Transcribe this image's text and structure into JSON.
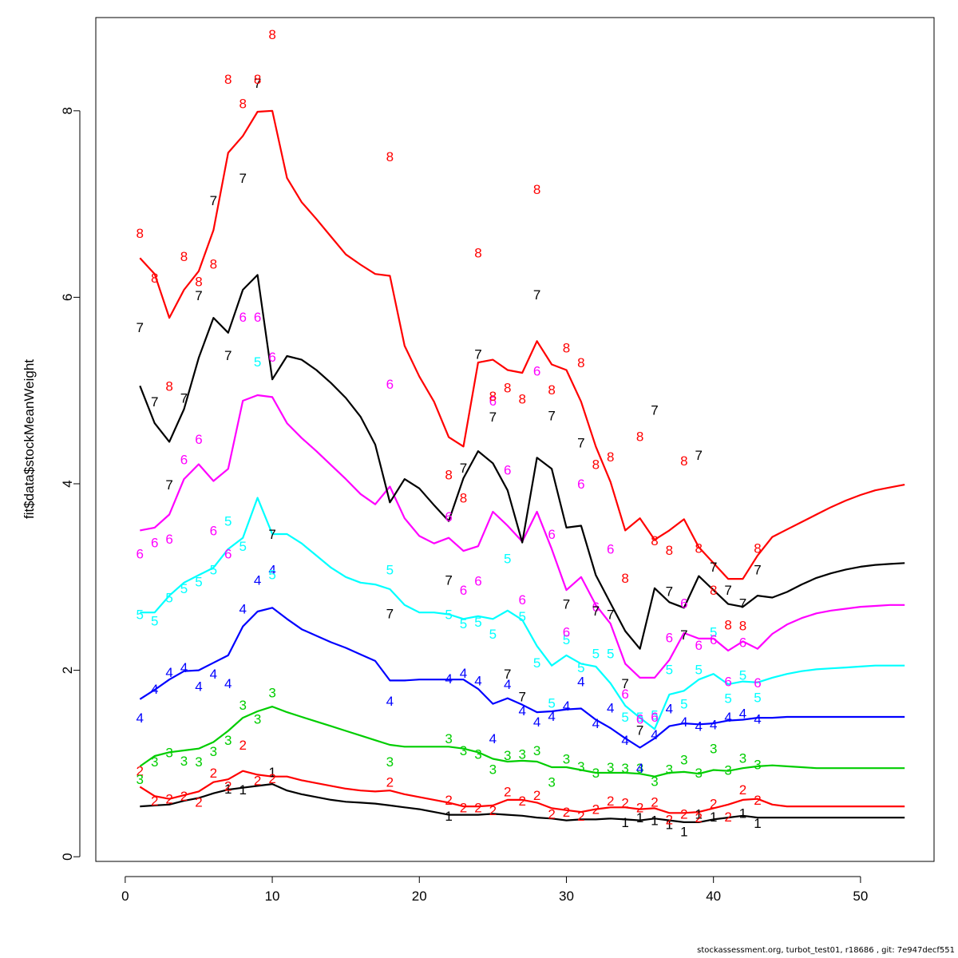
{
  "chart_data": {
    "type": "line",
    "ylabel": "fit$data$stockMeanWeight",
    "xlim": [
      -2,
      55
    ],
    "ylim": [
      -0.05,
      9.0
    ],
    "x_ticks": [
      0,
      10,
      20,
      30,
      40,
      50
    ],
    "y_ticks": [
      0,
      2,
      4,
      6,
      8
    ],
    "fit_x": [
      1,
      2,
      3,
      4,
      5,
      6,
      7,
      8,
      9,
      10,
      11,
      12,
      13,
      14,
      15,
      16,
      17,
      18,
      19,
      20,
      21,
      22,
      23,
      24,
      25,
      26,
      27,
      28,
      29,
      30,
      31,
      32,
      33,
      34,
      35,
      36,
      37,
      38,
      39,
      40,
      41,
      42,
      43,
      44,
      45,
      46,
      47,
      48,
      49,
      50,
      51,
      52,
      53
    ],
    "series": [
      {
        "name": "1",
        "color": "#000000",
        "fit": [
          0.54,
          0.55,
          0.56,
          0.6,
          0.63,
          0.68,
          0.72,
          0.74,
          0.76,
          0.78,
          0.71,
          0.67,
          0.64,
          0.61,
          0.59,
          0.58,
          0.57,
          0.55,
          0.53,
          0.51,
          0.48,
          0.45,
          0.45,
          0.45,
          0.46,
          0.45,
          0.44,
          0.42,
          0.41,
          0.39,
          0.4,
          0.4,
          0.41,
          0.4,
          0.39,
          0.41,
          0.39,
          0.37,
          0.37,
          0.4,
          0.42,
          0.44,
          0.42,
          0.42,
          0.42,
          0.42,
          0.42,
          0.42,
          0.42,
          0.42,
          0.42,
          0.42,
          0.42
        ],
        "obs_x": [
          7,
          8,
          10,
          22,
          34,
          35,
          36,
          37,
          38,
          39,
          40,
          42,
          43
        ],
        "obs_y": [
          0.73,
          0.72,
          0.91,
          0.44,
          0.37,
          0.42,
          0.39,
          0.35,
          0.27,
          0.46,
          0.43,
          0.47,
          0.36
        ]
      },
      {
        "name": "2",
        "color": "#ff0000",
        "fit": [
          0.75,
          0.65,
          0.62,
          0.66,
          0.7,
          0.8,
          0.83,
          0.92,
          0.88,
          0.86,
          0.86,
          0.82,
          0.79,
          0.76,
          0.73,
          0.71,
          0.7,
          0.71,
          0.67,
          0.64,
          0.61,
          0.58,
          0.54,
          0.54,
          0.55,
          0.61,
          0.61,
          0.58,
          0.52,
          0.5,
          0.48,
          0.51,
          0.53,
          0.53,
          0.51,
          0.52,
          0.47,
          0.47,
          0.48,
          0.52,
          0.56,
          0.61,
          0.62,
          0.56,
          0.54,
          0.54,
          0.54,
          0.54,
          0.54,
          0.54,
          0.54,
          0.54,
          0.54
        ],
        "obs_x": [
          1,
          2,
          3,
          4,
          5,
          6,
          7,
          8,
          9,
          10,
          18,
          22,
          23,
          24,
          25,
          26,
          27,
          28,
          29,
          30,
          31,
          32,
          33,
          34,
          35,
          36,
          37,
          38,
          39,
          40,
          41,
          42,
          43
        ],
        "obs_y": [
          0.92,
          0.6,
          0.62,
          0.65,
          0.59,
          0.9,
          0.76,
          1.2,
          0.82,
          0.84,
          0.8,
          0.61,
          0.53,
          0.53,
          0.5,
          0.7,
          0.6,
          0.66,
          0.46,
          0.48,
          0.44,
          0.51,
          0.6,
          0.58,
          0.53,
          0.59,
          0.4,
          0.46,
          0.42,
          0.57,
          0.43,
          0.72,
          0.61
        ]
      },
      {
        "name": "3",
        "color": "#00cd00",
        "fit": [
          0.97,
          1.08,
          1.12,
          1.14,
          1.16,
          1.23,
          1.35,
          1.49,
          1.56,
          1.61,
          1.55,
          1.5,
          1.45,
          1.4,
          1.35,
          1.3,
          1.25,
          1.2,
          1.18,
          1.18,
          1.18,
          1.18,
          1.16,
          1.12,
          1.05,
          1.02,
          1.03,
          1.02,
          0.96,
          0.96,
          0.93,
          0.9,
          0.9,
          0.9,
          0.89,
          0.86,
          0.9,
          0.91,
          0.89,
          0.93,
          0.92,
          0.95,
          0.97,
          0.98,
          0.97,
          0.96,
          0.95,
          0.95,
          0.95,
          0.95,
          0.95,
          0.95,
          0.95
        ],
        "obs_x": [
          1,
          2,
          3,
          4,
          5,
          6,
          7,
          8,
          9,
          10,
          18,
          22,
          23,
          24,
          25,
          26,
          27,
          28,
          29,
          30,
          31,
          32,
          33,
          34,
          35,
          36,
          37,
          38,
          39,
          40,
          41,
          42,
          43
        ],
        "obs_y": [
          0.83,
          1.02,
          1.12,
          1.03,
          1.02,
          1.13,
          1.25,
          1.63,
          1.48,
          1.76,
          1.02,
          1.27,
          1.14,
          1.1,
          0.94,
          1.09,
          1.1,
          1.14,
          0.8,
          1.05,
          0.97,
          0.9,
          0.96,
          0.95,
          0.95,
          0.81,
          0.94,
          1.04,
          0.9,
          1.16,
          0.93,
          1.06,
          0.99
        ]
      },
      {
        "name": "4",
        "color": "#0000ff",
        "fit": [
          1.69,
          1.79,
          1.9,
          1.99,
          2.0,
          2.08,
          2.16,
          2.47,
          2.63,
          2.67,
          2.55,
          2.44,
          2.37,
          2.3,
          2.24,
          2.17,
          2.1,
          1.89,
          1.89,
          1.9,
          1.9,
          1.9,
          1.9,
          1.8,
          1.64,
          1.7,
          1.63,
          1.55,
          1.56,
          1.58,
          1.59,
          1.47,
          1.38,
          1.27,
          1.17,
          1.27,
          1.4,
          1.43,
          1.42,
          1.43,
          1.46,
          1.47,
          1.49,
          1.49,
          1.5,
          1.5,
          1.5,
          1.5,
          1.5,
          1.5,
          1.5,
          1.5,
          1.5
        ],
        "obs_x": [
          1,
          2,
          3,
          4,
          5,
          6,
          7,
          8,
          9,
          10,
          18,
          22,
          23,
          24,
          25,
          26,
          27,
          28,
          29,
          30,
          31,
          32,
          33,
          34,
          35,
          36,
          37,
          38,
          39,
          40,
          41,
          42,
          43
        ],
        "obs_y": [
          1.49,
          1.8,
          1.98,
          2.03,
          1.83,
          1.96,
          1.86,
          2.66,
          2.97,
          3.08,
          1.67,
          1.91,
          1.97,
          1.89,
          1.27,
          1.85,
          1.57,
          1.45,
          1.51,
          1.62,
          1.88,
          1.43,
          1.6,
          1.25,
          0.95,
          1.31,
          1.59,
          1.45,
          1.4,
          1.42,
          1.5,
          1.54,
          1.48
        ]
      },
      {
        "name": "5",
        "color": "#00ffff",
        "fit": [
          2.62,
          2.62,
          2.8,
          2.94,
          3.02,
          3.1,
          3.3,
          3.42,
          3.85,
          3.46,
          3.46,
          3.36,
          3.23,
          3.1,
          3.0,
          2.94,
          2.92,
          2.87,
          2.7,
          2.62,
          2.62,
          2.6,
          2.55,
          2.58,
          2.55,
          2.64,
          2.54,
          2.26,
          2.05,
          2.16,
          2.07,
          2.04,
          1.86,
          1.62,
          1.49,
          1.37,
          1.74,
          1.78,
          1.9,
          1.96,
          1.85,
          1.88,
          1.87,
          1.92,
          1.96,
          1.99,
          2.01,
          2.02,
          2.03,
          2.04,
          2.05,
          2.05,
          2.05
        ],
        "obs_x": [
          1,
          2,
          3,
          4,
          5,
          6,
          7,
          8,
          9,
          10,
          18,
          22,
          23,
          24,
          25,
          26,
          27,
          28,
          29,
          30,
          31,
          32,
          33,
          34,
          35,
          36,
          37,
          38,
          39,
          40,
          41,
          42,
          43
        ],
        "obs_y": [
          2.6,
          2.53,
          2.78,
          2.88,
          2.95,
          3.08,
          3.6,
          3.33,
          5.31,
          3.03,
          3.08,
          2.6,
          2.5,
          2.52,
          2.39,
          3.2,
          2.58,
          2.08,
          1.65,
          2.33,
          2.03,
          2.18,
          2.18,
          1.5,
          1.5,
          1.52,
          2.01,
          1.64,
          2.01,
          2.41,
          1.7,
          1.95,
          1.71
        ]
      },
      {
        "name": "6",
        "color": "#ff00ff",
        "fit": [
          3.5,
          3.53,
          3.67,
          4.05,
          4.21,
          4.03,
          4.16,
          4.89,
          4.95,
          4.93,
          4.65,
          4.49,
          4.35,
          4.2,
          4.05,
          3.89,
          3.78,
          3.97,
          3.63,
          3.44,
          3.36,
          3.42,
          3.28,
          3.33,
          3.7,
          3.55,
          3.38,
          3.7,
          3.3,
          2.86,
          3.0,
          2.7,
          2.5,
          2.07,
          1.92,
          1.92,
          2.11,
          2.4,
          2.34,
          2.34,
          2.21,
          2.31,
          2.23,
          2.39,
          2.49,
          2.56,
          2.61,
          2.64,
          2.66,
          2.68,
          2.69,
          2.7,
          2.7
        ],
        "obs_x": [
          1,
          2,
          3,
          4,
          5,
          6,
          7,
          8,
          9,
          10,
          18,
          22,
          23,
          24,
          25,
          26,
          27,
          28,
          29,
          30,
          31,
          32,
          33,
          34,
          35,
          36,
          37,
          38,
          39,
          40,
          41,
          42,
          43
        ],
        "obs_y": [
          3.25,
          3.37,
          3.41,
          4.26,
          4.48,
          3.5,
          3.25,
          5.79,
          5.79,
          5.36,
          5.07,
          3.65,
          2.86,
          2.96,
          4.89,
          4.15,
          2.76,
          5.21,
          3.46,
          2.41,
          4.0,
          2.68,
          3.3,
          1.75,
          1.48,
          1.5,
          2.35,
          2.72,
          2.27,
          2.33,
          1.88,
          2.3,
          1.87
        ]
      },
      {
        "name": "7",
        "color": "#000000",
        "fit": [
          5.05,
          4.65,
          4.45,
          4.8,
          5.35,
          5.78,
          5.62,
          6.08,
          6.24,
          5.12,
          5.37,
          5.33,
          5.22,
          5.08,
          4.92,
          4.72,
          4.42,
          3.8,
          4.05,
          3.95,
          3.77,
          3.6,
          4.06,
          4.35,
          4.22,
          3.93,
          3.37,
          4.28,
          4.16,
          3.53,
          3.55,
          3.02,
          2.72,
          2.42,
          2.23,
          2.88,
          2.73,
          2.67,
          3.01,
          2.86,
          2.71,
          2.68,
          2.8,
          2.78,
          2.84,
          2.92,
          2.99,
          3.04,
          3.08,
          3.11,
          3.13,
          3.14,
          3.15
        ],
        "obs_x": [
          1,
          2,
          3,
          4,
          5,
          6,
          7,
          8,
          9,
          10,
          18,
          22,
          23,
          24,
          25,
          26,
          27,
          28,
          29,
          30,
          31,
          32,
          33,
          34,
          35,
          36,
          37,
          38,
          39,
          40,
          41,
          42,
          43
        ],
        "obs_y": [
          5.68,
          4.88,
          3.99,
          4.92,
          6.02,
          7.04,
          5.38,
          7.28,
          8.3,
          3.46,
          2.61,
          2.97,
          4.17,
          5.39,
          4.72,
          1.96,
          1.72,
          6.03,
          4.73,
          2.71,
          4.44,
          2.64,
          2.6,
          1.86,
          1.36,
          4.79,
          2.85,
          2.38,
          4.31,
          3.11,
          2.86,
          2.72,
          3.08
        ]
      },
      {
        "name": "8",
        "color": "#ff0000",
        "fit": [
          6.42,
          6.25,
          5.78,
          6.08,
          6.28,
          6.72,
          7.55,
          7.73,
          7.99,
          8.0,
          7.28,
          7.02,
          6.84,
          6.65,
          6.46,
          6.35,
          6.25,
          6.23,
          5.48,
          5.15,
          4.88,
          4.5,
          4.4,
          5.3,
          5.33,
          5.22,
          5.19,
          5.53,
          5.28,
          5.22,
          4.88,
          4.4,
          4.02,
          3.5,
          3.63,
          3.4,
          3.5,
          3.62,
          3.32,
          3.15,
          2.98,
          2.98,
          3.23,
          3.43,
          3.51,
          3.59,
          3.67,
          3.75,
          3.82,
          3.88,
          3.93,
          3.96,
          3.99
        ],
        "obs_x": [
          1,
          2,
          3,
          4,
          5,
          6,
          7,
          8,
          9,
          10,
          18,
          22,
          23,
          24,
          25,
          26,
          27,
          28,
          29,
          30,
          31,
          32,
          33,
          34,
          35,
          36,
          37,
          38,
          39,
          40,
          41,
          42,
          43
        ],
        "obs_y": [
          6.69,
          6.21,
          5.05,
          6.44,
          6.17,
          6.36,
          8.34,
          8.08,
          8.34,
          8.82,
          7.51,
          4.1,
          3.85,
          6.48,
          4.94,
          5.03,
          4.91,
          7.16,
          5.01,
          5.46,
          5.3,
          4.21,
          4.29,
          2.99,
          4.51,
          3.39,
          3.29,
          4.25,
          3.31,
          2.86,
          2.49,
          2.48,
          3.31
        ]
      }
    ]
  },
  "footer_text": "stockassessment.org, turbot_test01, r18686 , git: 7e947decf551"
}
